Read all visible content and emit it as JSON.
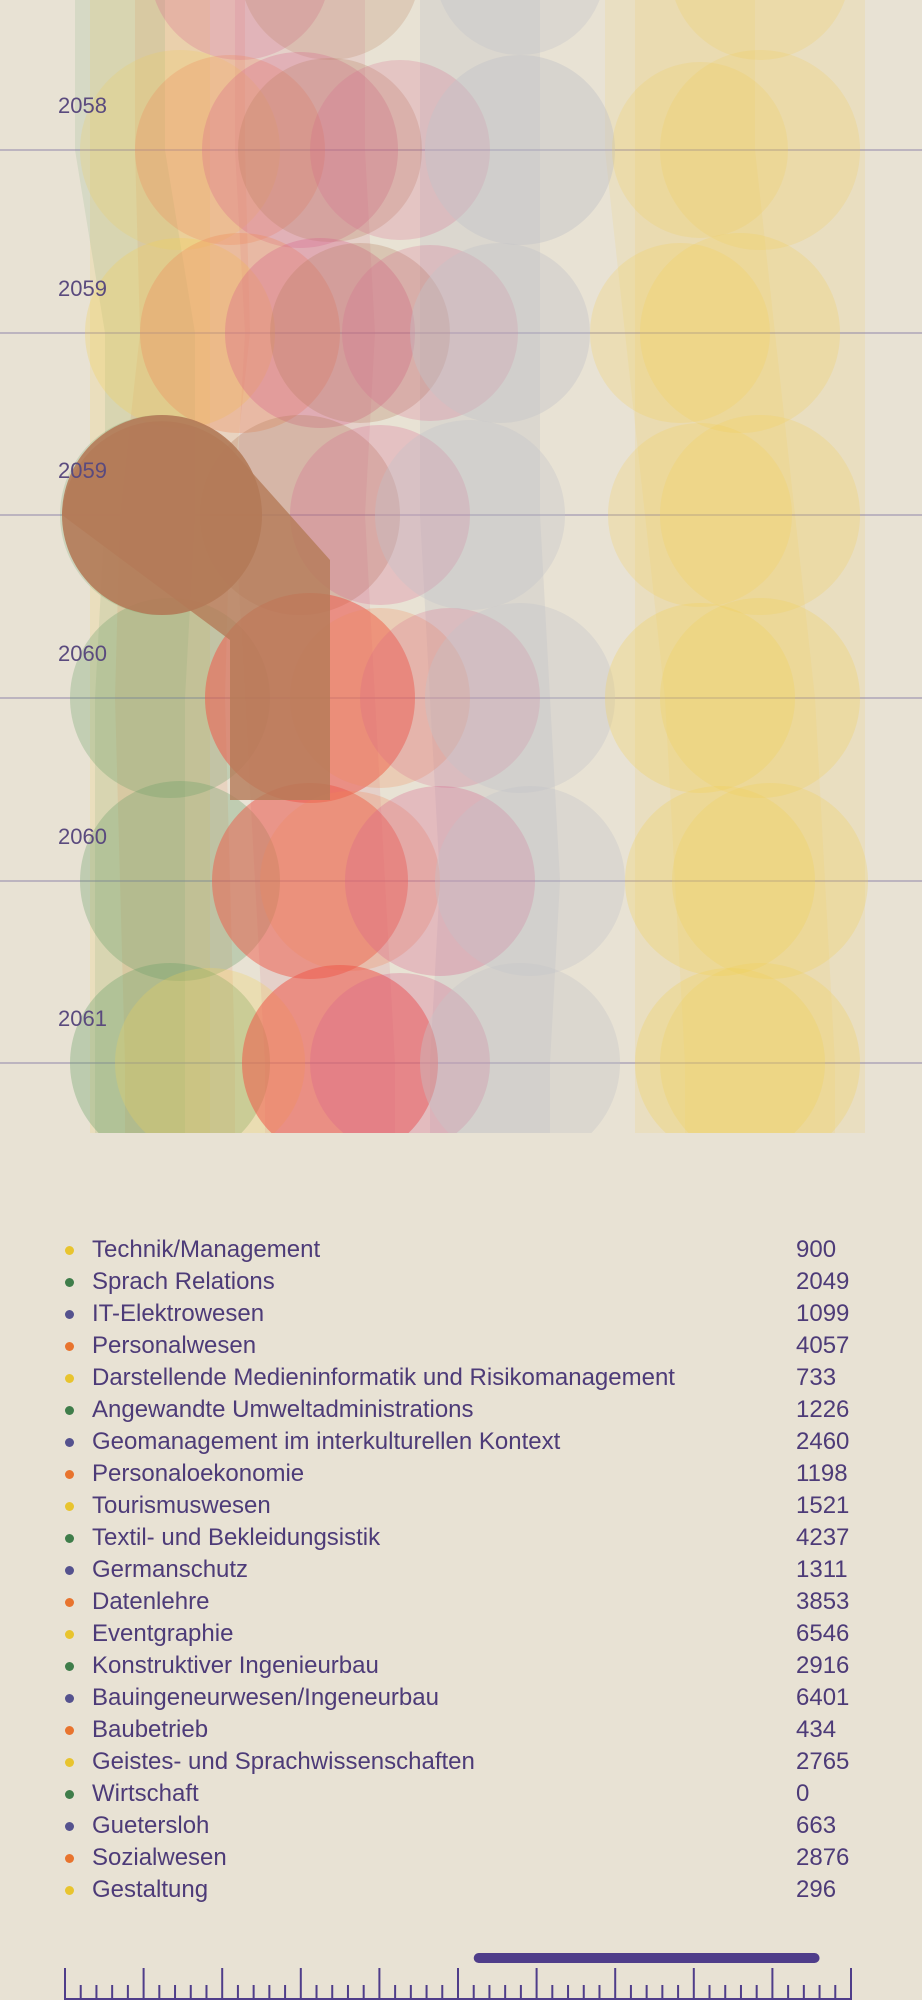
{
  "chart_data": {
    "type": "stream-bubble",
    "years": [
      "2058",
      "2059",
      "2059",
      "2060",
      "2060",
      "2061"
    ],
    "palette": {
      "yellow": "#f2cf58",
      "green": "#6aa068",
      "blue": "#9a9ab8",
      "orange": "#ef8a58",
      "pink": "#d8608a",
      "red": "#ee5a4a",
      "brown": "#b47a58",
      "gray": "#c4c4c8"
    },
    "legend": [
      {
        "name": "Technik/Management",
        "value": "900",
        "color": "#e8c42e"
      },
      {
        "name": "Sprach Relations",
        "value": "2049",
        "color": "#3f7d4a"
      },
      {
        "name": "IT-Elektrowesen",
        "value": "1099",
        "color": "#55528e"
      },
      {
        "name": "Personalwesen",
        "value": "4057",
        "color": "#e8742e"
      },
      {
        "name": "Darstellende Medieninformatik und Risikomanagement",
        "value": "733",
        "color": "#e8c42e"
      },
      {
        "name": "Angewandte Umweltadministrations",
        "value": "1226",
        "color": "#3f7d4a"
      },
      {
        "name": "Geomanagement im interkulturellen Kontext",
        "value": "2460",
        "color": "#55528e"
      },
      {
        "name": "Personaloekonomie",
        "value": "1198",
        "color": "#e8742e"
      },
      {
        "name": "Tourismuswesen",
        "value": "1521",
        "color": "#e8c42e"
      },
      {
        "name": "Textil- und Bekleidungsistik",
        "value": "4237",
        "color": "#3f7d4a"
      },
      {
        "name": "Germanschutz",
        "value": "1311",
        "color": "#55528e"
      },
      {
        "name": "Datenlehre",
        "value": "3853",
        "color": "#e8742e"
      },
      {
        "name": "Eventgraphie",
        "value": "6546",
        "color": "#e8c42e"
      },
      {
        "name": "Konstruktiver Ingenieurbau",
        "value": "2916",
        "color": "#3f7d4a"
      },
      {
        "name": "Bauingeneurwesen/Ingeneurbau",
        "value": "6401",
        "color": "#55528e"
      },
      {
        "name": "Baubetrieb",
        "value": "434",
        "color": "#e8742e"
      },
      {
        "name": "Geistes- und Sprachwissenschaften",
        "value": "2765",
        "color": "#e8c42e"
      },
      {
        "name": "Wirtschaft",
        "value": "0",
        "color": "#3f7d4a"
      },
      {
        "name": "Guetersloh",
        "value": "663",
        "color": "#55528e"
      },
      {
        "name": "Sozialwesen",
        "value": "2876",
        "color": "#e8742e"
      },
      {
        "name": "Gestaltung",
        "value": "296",
        "color": "#e8c42e"
      }
    ],
    "timeline": {
      "ticks": 51,
      "major_every": 5,
      "selection_start": 0.52,
      "selection_end": 0.96
    }
  }
}
